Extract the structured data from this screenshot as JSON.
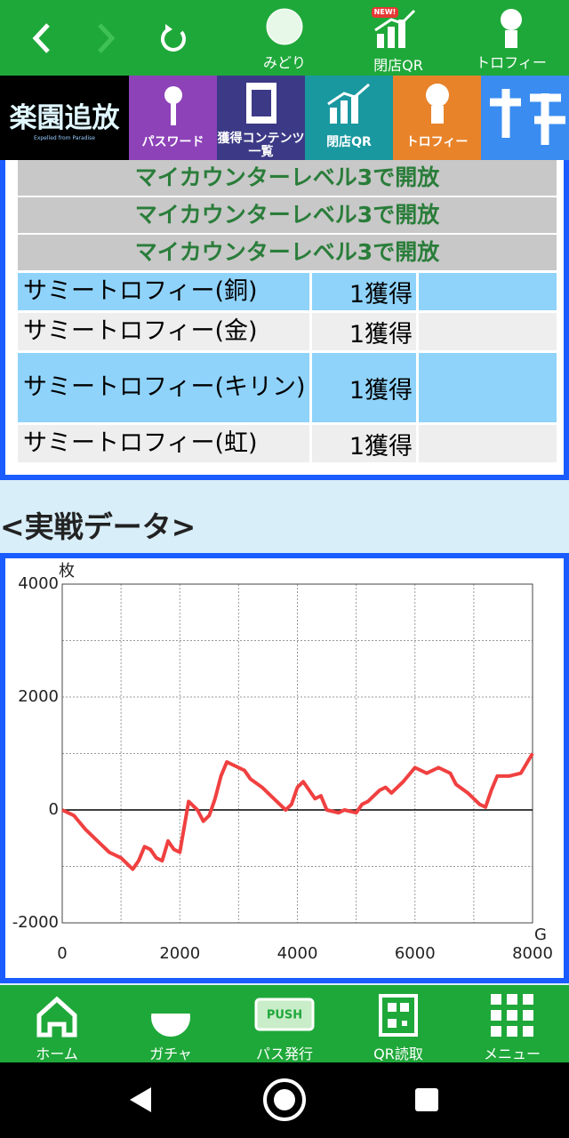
{
  "top_nav": {
    "items": [
      {
        "label": "みどり"
      },
      {
        "label": "閉店QR",
        "badge": "NEW!"
      },
      {
        "label": "トロフィー"
      }
    ]
  },
  "banner": {
    "logo": "楽園追放",
    "logo_sub": "Expelled from Paradise",
    "tabs": [
      {
        "label": "パスワード"
      },
      {
        "label_lines": [
          "獲得コンテンツ",
          "一覧"
        ]
      },
      {
        "label": "閉店QR"
      },
      {
        "label": "トロフィー"
      }
    ]
  },
  "locked_rows": [
    "マイカウンターレベル3で開放",
    "マイカウンターレベル3で開放",
    "マイカウンターレベル3で開放"
  ],
  "trophies": [
    {
      "name": "サミートロフィー(銅)",
      "count": "1獲得"
    },
    {
      "name": "サミートロフィー(金)",
      "count": "1獲得"
    },
    {
      "name": "サミートロフィー(キリン)",
      "count": "1獲得"
    },
    {
      "name": "サミートロフィー(虹)",
      "count": "1獲得"
    }
  ],
  "section_title": "<実戦データ>",
  "chart_data": {
    "type": "line",
    "y_unit": "枚",
    "x_unit": "G",
    "xlim": [
      0,
      8000
    ],
    "ylim": [
      -2000,
      4000
    ],
    "xticks": [
      0,
      2000,
      4000,
      6000,
      8000
    ],
    "yticks": [
      -2000,
      0,
      2000,
      4000
    ],
    "xgrid": [
      1000,
      2000,
      3000,
      4000,
      5000,
      6000,
      7000
    ],
    "ygrid": [
      -1000,
      1000,
      2000,
      3000
    ],
    "x": [
      0,
      200,
      400,
      600,
      800,
      1000,
      1200,
      1300,
      1400,
      1500,
      1600,
      1700,
      1800,
      1900,
      2000,
      2150,
      2300,
      2400,
      2500,
      2600,
      2700,
      2800,
      3000,
      3100,
      3200,
      3400,
      3600,
      3800,
      3900,
      4000,
      4100,
      4200,
      4300,
      4400,
      4500,
      4700,
      4800,
      5000,
      5100,
      5200,
      5400,
      5500,
      5600,
      5800,
      6000,
      6200,
      6400,
      6600,
      6700,
      6900,
      7100,
      7200,
      7300,
      7400,
      7600,
      7800,
      8000
    ],
    "series": [
      {
        "color": "#f04040",
        "values": [
          0,
          -100,
          -350,
          -550,
          -750,
          -850,
          -1050,
          -900,
          -650,
          -700,
          -850,
          -900,
          -550,
          -700,
          -750,
          150,
          0,
          -200,
          -100,
          200,
          600,
          850,
          750,
          700,
          550,
          400,
          200,
          0,
          100,
          400,
          500,
          350,
          200,
          250,
          0,
          -50,
          0,
          -50,
          100,
          150,
          350,
          400,
          300,
          500,
          750,
          650,
          750,
          650,
          450,
          300,
          100,
          50,
          350,
          600,
          600,
          650,
          1000
        ]
      }
    ]
  },
  "bottom_nav": [
    {
      "label": "ホーム"
    },
    {
      "label": "ガチャ"
    },
    {
      "label": "パス発行",
      "icon_text": "PUSH"
    },
    {
      "label": "QR読取"
    },
    {
      "label": "メニュー"
    }
  ]
}
